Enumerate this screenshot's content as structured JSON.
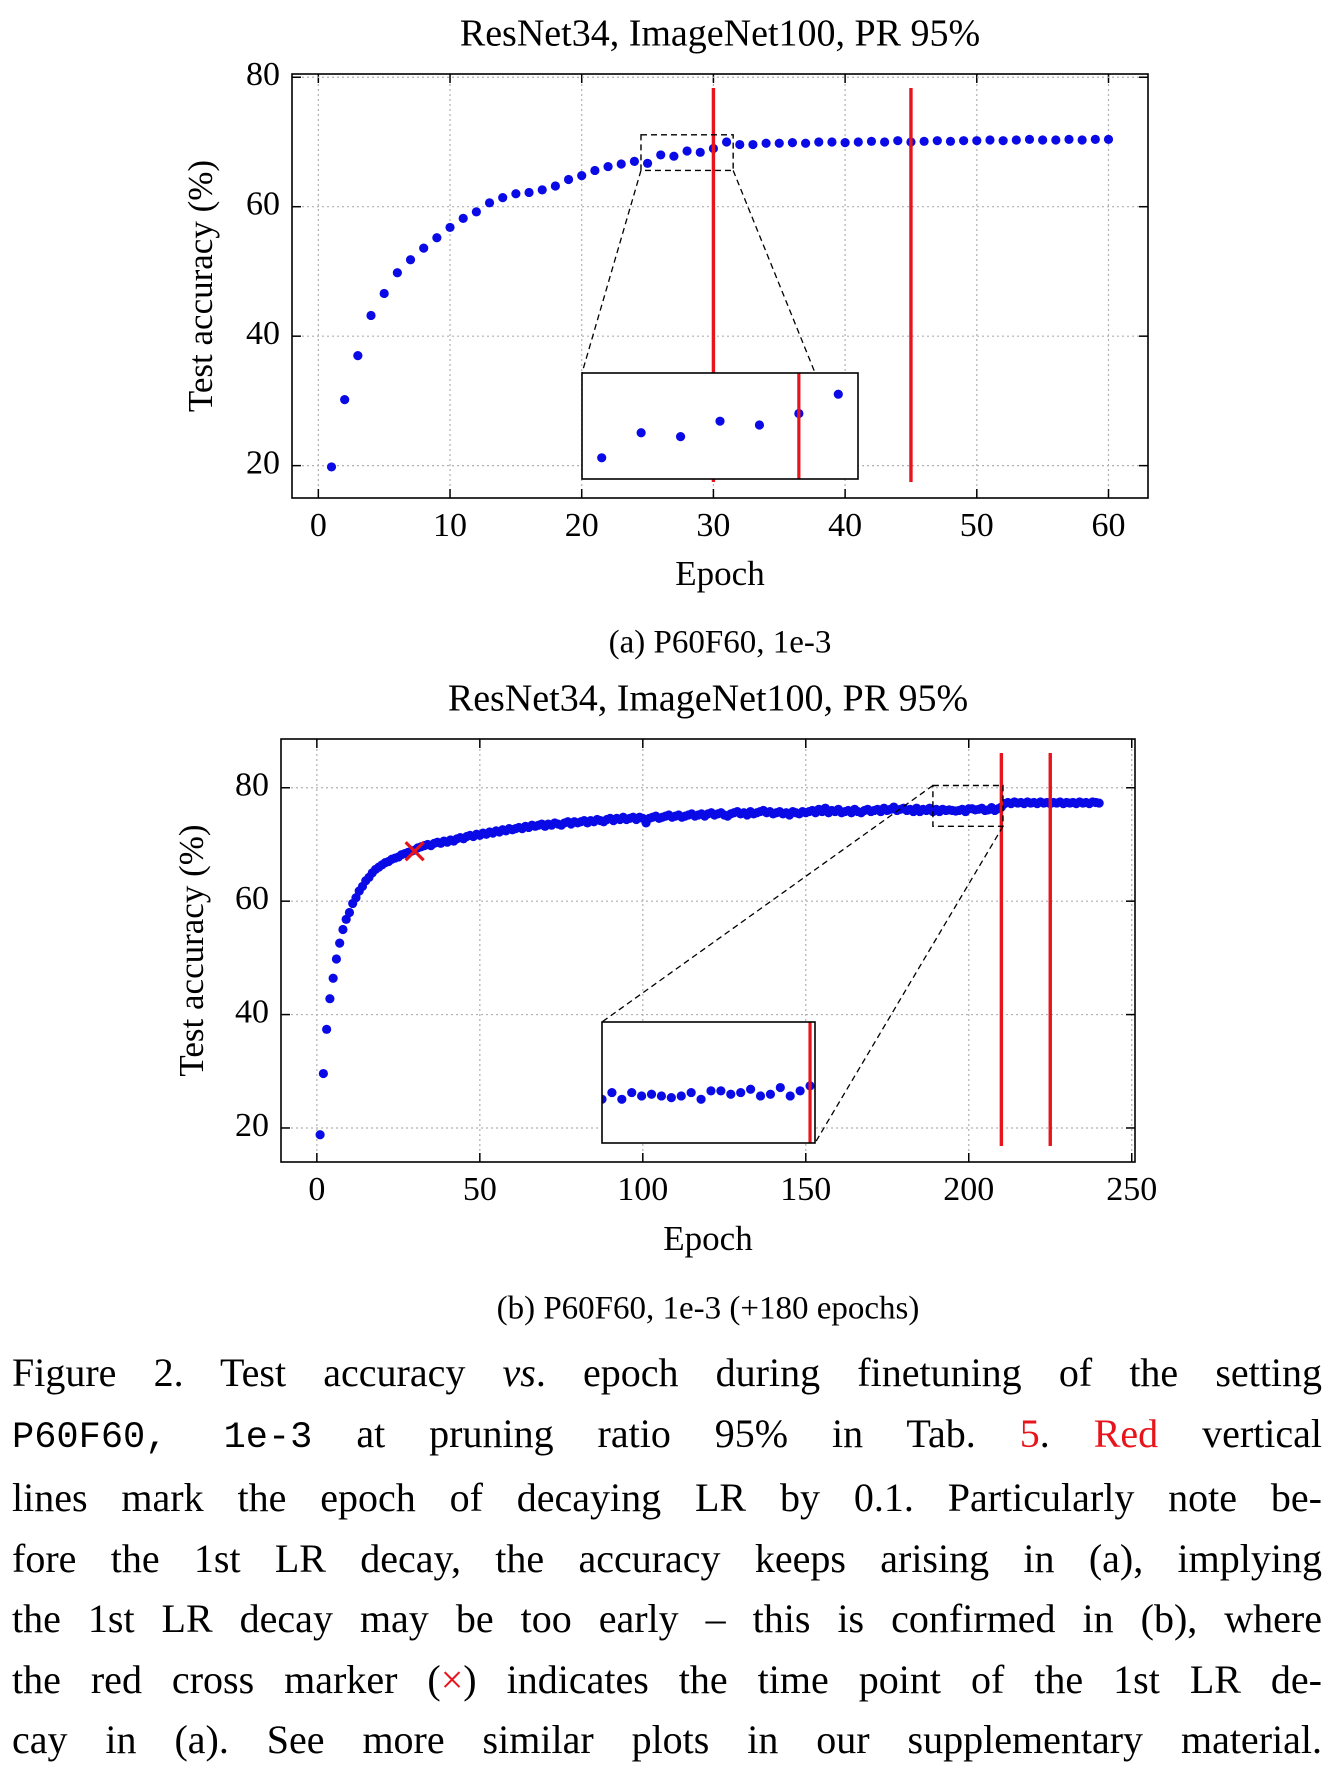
{
  "chart_data": [
    {
      "type": "scatter",
      "title": "ResNet34, ImageNet100, PR 95%",
      "caption": "(a) P60F60, 1e-3",
      "x_label": "Epoch",
      "y_label": "Test accuracy (%)",
      "color": "#0a0ae6",
      "x": [
        1,
        2,
        3,
        4,
        5,
        6,
        7,
        8,
        9,
        10,
        11,
        12,
        13,
        14,
        15,
        16,
        17,
        18,
        19,
        20,
        21,
        22,
        23,
        24,
        25,
        26,
        27,
        28,
        29,
        30,
        31,
        32,
        33,
        34,
        35,
        36,
        37,
        38,
        39,
        40,
        41,
        42,
        43,
        44,
        45,
        46,
        47,
        48,
        49,
        50,
        51,
        52,
        53,
        54,
        55,
        56,
        57,
        58,
        59,
        60
      ],
      "values": [
        19.8,
        30.2,
        37.0,
        43.2,
        46.6,
        49.8,
        51.8,
        53.6,
        55.2,
        56.8,
        58.2,
        59.2,
        60.6,
        61.4,
        62.0,
        62.2,
        62.6,
        63.2,
        64.2,
        64.8,
        65.6,
        66.2,
        66.6,
        67.0,
        66.7,
        68.0,
        67.8,
        68.6,
        68.4,
        69.0,
        70.0,
        69.6,
        69.6,
        69.8,
        69.8,
        69.9,
        69.8,
        70.0,
        70.0,
        69.9,
        70.0,
        70.1,
        70.0,
        70.2,
        70.0,
        70.1,
        70.2,
        70.1,
        70.2,
        70.2,
        70.3,
        70.2,
        70.3,
        70.4,
        70.3,
        70.3,
        70.4,
        70.3,
        70.4,
        70.4
      ],
      "xlim": [
        -2,
        63
      ],
      "ylim": [
        15,
        80.5
      ],
      "xticks": [
        0,
        10,
        20,
        30,
        40,
        50,
        60
      ],
      "yticks": [
        20,
        40,
        60,
        80
      ],
      "grid": true,
      "vlines": [
        30,
        45
      ],
      "vline_color": "#e8141b",
      "inset_xlim": [
        24.5,
        31.5
      ],
      "inset_ylim": [
        65.6,
        71.1
      ]
    },
    {
      "type": "scatter",
      "title": "ResNet34, ImageNet100, PR 95%",
      "caption": "(b) P60F60, 1e-3 (+180 epochs)",
      "x_label": "Epoch",
      "y_label": "Test accuracy (%)",
      "color": "#0a0ae6",
      "x": [
        1,
        2,
        3,
        4,
        5,
        6,
        7,
        8,
        9,
        10,
        11,
        12,
        13,
        14,
        15,
        16,
        17,
        18,
        19,
        20,
        21,
        22,
        23,
        24,
        25,
        26,
        27,
        28,
        29,
        30,
        31,
        32,
        33,
        34,
        35,
        36,
        37,
        38,
        39,
        40,
        41,
        42,
        43,
        44,
        45,
        46,
        47,
        48,
        49,
        50,
        51,
        52,
        53,
        54,
        55,
        56,
        57,
        58,
        59,
        60,
        61,
        62,
        63,
        64,
        65,
        66,
        67,
        68,
        69,
        70,
        71,
        72,
        73,
        74,
        75,
        76,
        77,
        78,
        79,
        80,
        81,
        82,
        83,
        84,
        85,
        86,
        87,
        88,
        89,
        90,
        91,
        92,
        93,
        94,
        95,
        96,
        97,
        98,
        99,
        100,
        101,
        102,
        103,
        104,
        105,
        106,
        107,
        108,
        109,
        110,
        111,
        112,
        113,
        114,
        115,
        116,
        117,
        118,
        119,
        120,
        121,
        122,
        123,
        124,
        125,
        126,
        127,
        128,
        129,
        130,
        131,
        132,
        133,
        134,
        135,
        136,
        137,
        138,
        139,
        140,
        141,
        142,
        143,
        144,
        145,
        146,
        147,
        148,
        149,
        150,
        151,
        152,
        153,
        154,
        155,
        156,
        157,
        158,
        159,
        160,
        161,
        162,
        163,
        164,
        165,
        166,
        167,
        168,
        169,
        170,
        171,
        172,
        173,
        174,
        175,
        176,
        177,
        178,
        179,
        180,
        181,
        182,
        183,
        184,
        185,
        186,
        187,
        188,
        189,
        190,
        191,
        192,
        193,
        194,
        195,
        196,
        197,
        198,
        199,
        200,
        201,
        202,
        203,
        204,
        205,
        206,
        207,
        208,
        209,
        210,
        211,
        212,
        213,
        214,
        215,
        216,
        217,
        218,
        219,
        220,
        221,
        222,
        223,
        224,
        225,
        226,
        227,
        228,
        229,
        230,
        231,
        232,
        233,
        234,
        235,
        236,
        237,
        238,
        239,
        240
      ],
      "values": [
        18.8,
        29.6,
        37.4,
        42.8,
        46.4,
        49.8,
        52.6,
        55.0,
        56.8,
        58.0,
        59.6,
        60.6,
        61.8,
        62.6,
        63.6,
        64.2,
        65.0,
        65.6,
        66.0,
        66.4,
        66.8,
        67.0,
        67.4,
        67.6,
        67.8,
        68.2,
        68.4,
        68.6,
        68.8,
        69.0,
        69.4,
        69.6,
        69.8,
        70.0,
        69.8,
        70.2,
        70.4,
        70.2,
        70.6,
        70.4,
        70.8,
        70.6,
        71.0,
        71.2,
        71.0,
        71.4,
        71.6,
        71.4,
        71.8,
        71.6,
        72.0,
        71.8,
        72.2,
        72.0,
        72.4,
        72.2,
        72.6,
        72.4,
        72.8,
        72.6,
        72.8,
        73.0,
        72.8,
        73.2,
        73.0,
        73.4,
        73.2,
        73.4,
        73.6,
        73.2,
        73.6,
        73.4,
        73.8,
        73.6,
        73.4,
        73.8,
        74.0,
        73.6,
        74.0,
        73.8,
        74.0,
        74.2,
        73.8,
        74.2,
        74.0,
        74.4,
        74.2,
        74.0,
        74.4,
        74.6,
        74.2,
        74.6,
        74.4,
        74.8,
        74.4,
        74.6,
        74.8,
        74.4,
        74.8,
        74.6,
        73.8,
        74.6,
        74.8,
        75.0,
        74.6,
        74.8,
        75.0,
        75.2,
        74.8,
        75.0,
        75.2,
        74.8,
        75.0,
        75.2,
        75.4,
        75.0,
        75.2,
        75.4,
        75.0,
        75.4,
        75.6,
        75.2,
        75.4,
        75.6,
        75.2,
        75.0,
        75.4,
        75.6,
        75.8,
        75.4,
        75.6,
        75.2,
        75.8,
        75.4,
        75.6,
        75.8,
        76.0,
        75.6,
        75.8,
        75.4,
        75.6,
        75.8,
        75.4,
        75.6,
        75.2,
        75.8,
        75.6,
        75.4,
        75.8,
        75.6,
        75.8,
        76.0,
        75.6,
        76.2,
        75.8,
        76.4,
        75.6,
        76.0,
        75.8,
        76.2,
        75.6,
        75.8,
        76.0,
        75.6,
        76.2,
        75.8,
        75.6,
        76.0,
        76.2,
        75.8,
        76.0,
        76.2,
        75.8,
        76.4,
        76.0,
        76.2,
        76.6,
        76.0,
        76.2,
        76.4,
        76.0,
        76.2,
        75.8,
        76.4,
        75.8,
        76.2,
        76.0,
        76.4,
        75.8,
        76.2,
        75.8,
        76.2,
        76.0,
        76.1,
        76.0,
        75.9,
        76.0,
        76.2,
        75.8,
        76.3,
        76.3,
        76.1,
        76.2,
        76.4,
        76.0,
        76.1,
        76.5,
        76.0,
        76.3,
        76.6,
        77.2,
        77.4,
        77.2,
        77.5,
        77.3,
        77.4,
        77.2,
        77.5,
        77.3,
        77.4,
        77.2,
        77.5,
        77.3,
        77.4,
        77.2,
        77.4,
        77.3,
        77.5,
        77.2,
        77.4,
        77.3,
        77.4,
        77.2,
        77.5,
        77.3,
        77.4,
        77.2,
        77.5,
        77.4,
        77.3
      ],
      "xlim": [
        -11,
        251
      ],
      "ylim": [
        14,
        88.6
      ],
      "xticks": [
        0,
        50,
        100,
        150,
        200,
        250
      ],
      "yticks": [
        20,
        40,
        60,
        80
      ],
      "grid": true,
      "vlines": [
        210,
        225
      ],
      "vline_color": "#e8141b",
      "cross_x": 30,
      "cross_y": 68.8,
      "cross_color": "#e8141b",
      "inset_xlim": [
        189,
        210.5
      ],
      "inset_ylim": [
        73.2,
        80.4
      ]
    }
  ],
  "caption": {
    "lines": [
      [
        {
          "text": "Figure 2. Test accuracy "
        },
        {
          "text": "vs",
          "style": "italic"
        },
        {
          "text": ". epoch during finetuning of the setting"
        }
      ],
      [
        {
          "text": "P60F60, 1e-3",
          "style": "mono"
        },
        {
          "text": " at pruning ratio 95% in Tab. "
        },
        {
          "text": "5",
          "style": "red"
        },
        {
          "text": ". "
        },
        {
          "text": "Red",
          "style": "red"
        },
        {
          "text": " vertical"
        }
      ],
      [
        {
          "text": "lines mark the epoch of decaying LR by 0.1. Particularly note be-"
        }
      ],
      [
        {
          "text": "fore the 1st LR decay, the accuracy keeps arising in (a), implying"
        }
      ],
      [
        {
          "text": "the 1st LR decay may be too early – this is confirmed in (b), where"
        }
      ],
      [
        {
          "text": "the red cross marker ("
        },
        {
          "text": "×",
          "style": "red"
        },
        {
          "text": ") indicates the time point of the 1st LR de-"
        }
      ],
      [
        {
          "text": "cay in (a). See more similar plots in our supplementary material."
        }
      ]
    ]
  }
}
